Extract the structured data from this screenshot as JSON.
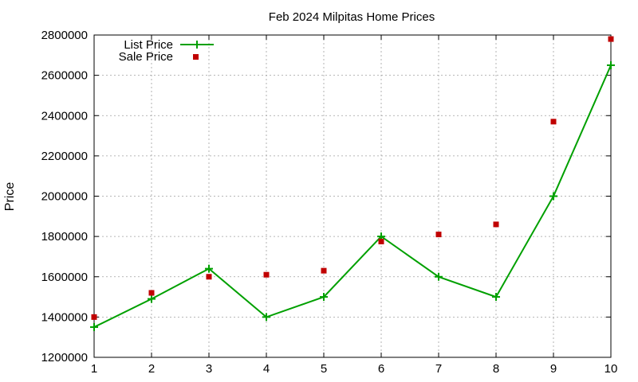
{
  "chart_data": {
    "type": "line",
    "title": "Feb 2024 Milpitas Home Prices",
    "xlabel": "",
    "ylabel": "Price",
    "x": [
      1,
      2,
      3,
      4,
      5,
      6,
      7,
      8,
      9,
      10
    ],
    "xlim": [
      1,
      10
    ],
    "ylim": [
      1200000,
      2800000
    ],
    "xticks": [
      1,
      2,
      3,
      4,
      5,
      6,
      7,
      8,
      9,
      10
    ],
    "yticks": [
      1200000,
      1400000,
      1600000,
      1800000,
      2000000,
      2200000,
      2400000,
      2600000,
      2800000
    ],
    "grid": true,
    "legend_position": "top-left",
    "series": [
      {
        "name": "List Price",
        "style": "line-with-plus-markers",
        "color": "#00a000",
        "values": [
          1350000,
          1490000,
          1640000,
          1400000,
          1500000,
          1800000,
          1600000,
          1500000,
          2000000,
          2650000
        ]
      },
      {
        "name": "Sale Price",
        "style": "square-markers",
        "color": "#c00000",
        "x": [
          1,
          2,
          3,
          4,
          5,
          6,
          7,
          8,
          9,
          10
        ],
        "values": [
          1400000,
          1520000,
          1600000,
          1610000,
          1630000,
          1775000,
          1810000,
          1860000,
          2370000,
          2780000
        ]
      }
    ]
  }
}
